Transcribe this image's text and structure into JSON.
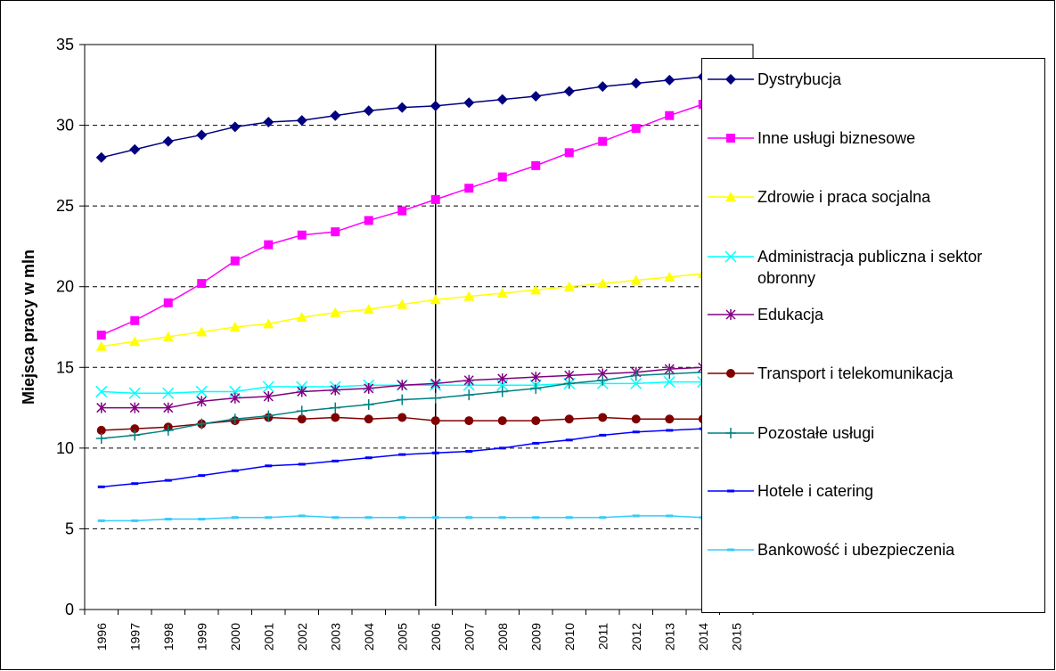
{
  "chart_data": {
    "type": "line",
    "y_label": "Miejsca pracy w mln",
    "categories": [
      "1996",
      "1997",
      "1998",
      "1999",
      "2000",
      "2001",
      "2002",
      "2003",
      "2004",
      "2005",
      "2006",
      "2007",
      "2008",
      "2009",
      "2010",
      "2011",
      "2012",
      "2013",
      "2014",
      "2015"
    ],
    "ylim": [
      0,
      35
    ],
    "yticks": [
      0,
      5,
      10,
      15,
      20,
      25,
      30,
      35
    ],
    "grid": true,
    "vertical_line_at": 2006,
    "series": [
      {
        "name": "Dystrybucja",
        "color": "#000080",
        "marker": "diamond",
        "values": [
          28.0,
          28.5,
          29.0,
          29.4,
          29.9,
          30.2,
          30.3,
          30.6,
          30.9,
          31.1,
          31.2,
          31.4,
          31.6,
          31.8,
          32.1,
          32.4,
          32.6,
          32.8,
          33.0,
          null
        ]
      },
      {
        "name": "Inne usługi biznesowe",
        "color": "#ff00ff",
        "marker": "square",
        "values": [
          17.0,
          17.9,
          19.0,
          20.2,
          21.6,
          22.6,
          23.2,
          23.4,
          24.1,
          24.7,
          25.4,
          26.1,
          26.8,
          27.5,
          28.3,
          29.0,
          29.8,
          30.6,
          31.3,
          null
        ]
      },
      {
        "name": "Zdrowie i praca socjalna",
        "color": "#ffff00",
        "marker": "triangle",
        "values": [
          16.3,
          16.6,
          16.9,
          17.2,
          17.5,
          17.7,
          18.1,
          18.4,
          18.6,
          18.9,
          19.2,
          19.4,
          19.6,
          19.8,
          20.0,
          20.2,
          20.4,
          20.6,
          20.8,
          null
        ]
      },
      {
        "name": "Administracja publiczna i sektor obronny",
        "color": "#00ffff",
        "marker": "x",
        "values": [
          13.5,
          13.4,
          13.4,
          13.5,
          13.5,
          13.8,
          13.8,
          13.8,
          13.9,
          13.9,
          13.9,
          13.9,
          13.9,
          13.9,
          14.0,
          14.0,
          14.0,
          14.1,
          14.1,
          null
        ]
      },
      {
        "name": "Edukacja",
        "color": "#800080",
        "marker": "star",
        "values": [
          12.5,
          12.5,
          12.5,
          12.9,
          13.1,
          13.2,
          13.5,
          13.6,
          13.7,
          13.9,
          14.0,
          14.2,
          14.3,
          14.4,
          14.5,
          14.6,
          14.7,
          14.9,
          15.0,
          null
        ]
      },
      {
        "name": "Transport i telekomunikacja",
        "color": "#800000",
        "marker": "circle",
        "values": [
          11.1,
          11.2,
          11.3,
          11.5,
          11.7,
          11.9,
          11.8,
          11.9,
          11.8,
          11.9,
          11.7,
          11.7,
          11.7,
          11.7,
          11.8,
          11.9,
          11.8,
          11.8,
          11.8,
          null
        ]
      },
      {
        "name": "Pozostałe usługi",
        "color": "#008080",
        "marker": "plus",
        "values": [
          10.6,
          10.8,
          11.1,
          11.5,
          11.8,
          12.0,
          12.3,
          12.5,
          12.7,
          13.0,
          13.1,
          13.3,
          13.5,
          13.7,
          14.0,
          14.2,
          14.5,
          14.6,
          14.7,
          null
        ]
      },
      {
        "name": "Hotele i catering",
        "color": "#0000ff",
        "marker": "dash",
        "values": [
          7.6,
          7.8,
          8.0,
          8.3,
          8.6,
          8.9,
          9.0,
          9.2,
          9.4,
          9.6,
          9.7,
          9.8,
          10.0,
          10.3,
          10.5,
          10.8,
          11.0,
          11.1,
          11.2,
          null
        ]
      },
      {
        "name": "Bankowość i ubezpieczenia",
        "color": "#33ccff",
        "marker": "dash",
        "values": [
          5.5,
          5.5,
          5.6,
          5.6,
          5.7,
          5.7,
          5.8,
          5.7,
          5.7,
          5.7,
          5.7,
          5.7,
          5.7,
          5.7,
          5.7,
          5.7,
          5.8,
          5.8,
          5.7,
          null
        ]
      }
    ]
  }
}
